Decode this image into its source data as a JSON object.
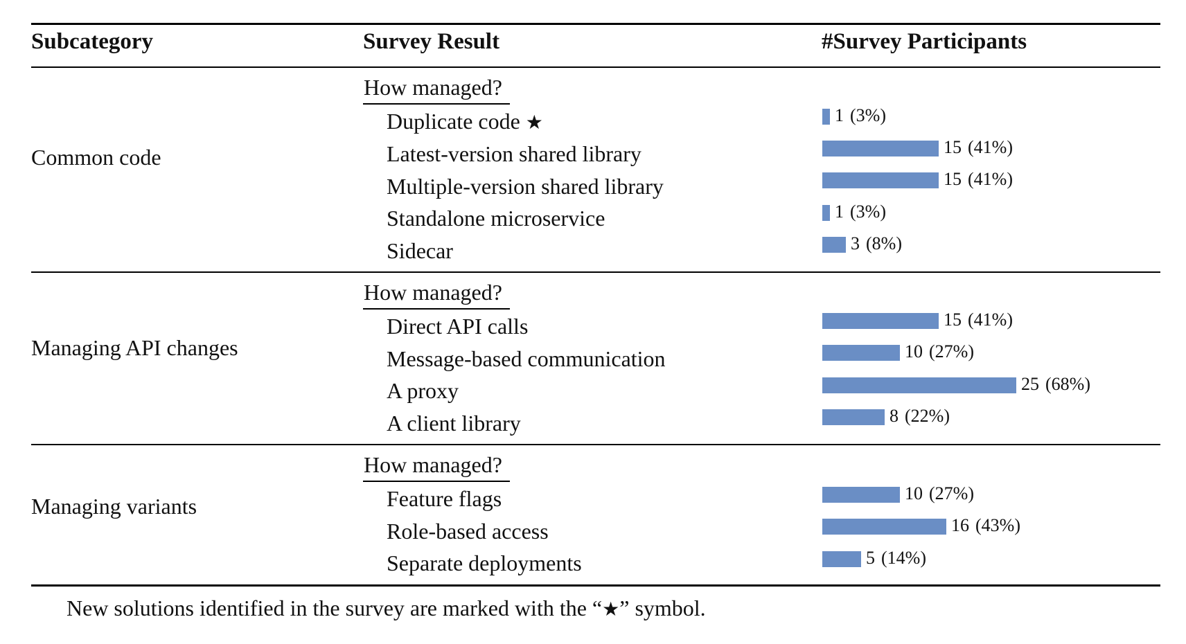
{
  "headers": {
    "subcategory": "Subcategory",
    "survey_result": "Survey Result",
    "participants": "#Survey Participants"
  },
  "star_symbol": "★",
  "bar_color": "#6a8ec5",
  "groups": [
    {
      "subcategory": "Common code",
      "question": "How managed?",
      "items": [
        {
          "label": "Duplicate code",
          "new": true,
          "count": "1",
          "pct": "(3%)",
          "value": 1
        },
        {
          "label": "Latest-version shared library",
          "new": false,
          "count": "15",
          "pct": "(41%)",
          "value": 15
        },
        {
          "label": "Multiple-version shared library",
          "new": false,
          "count": "15",
          "pct": "(41%)",
          "value": 15
        },
        {
          "label": "Standalone microservice",
          "new": false,
          "count": "1",
          "pct": "(3%)",
          "value": 1
        },
        {
          "label": "Sidecar",
          "new": false,
          "count": "3",
          "pct": "(8%)",
          "value": 3
        }
      ]
    },
    {
      "subcategory": "Managing API changes",
      "question": "How managed?",
      "items": [
        {
          "label": "Direct API calls",
          "new": false,
          "count": "15",
          "pct": "(41%)",
          "value": 15
        },
        {
          "label": "Message-based communication",
          "new": false,
          "count": "10",
          "pct": "(27%)",
          "value": 10
        },
        {
          "label": "A proxy",
          "new": false,
          "count": "25",
          "pct": "(68%)",
          "value": 25
        },
        {
          "label": "A client library",
          "new": false,
          "count": "8",
          "pct": "(22%)",
          "value": 8
        }
      ]
    },
    {
      "subcategory": "Managing variants",
      "question": "How managed?",
      "items": [
        {
          "label": "Feature flags",
          "new": false,
          "count": "10",
          "pct": "(27%)",
          "value": 10
        },
        {
          "label": "Role-based access",
          "new": false,
          "count": "16",
          "pct": "(43%)",
          "value": 16
        },
        {
          "label": "Separate deployments",
          "new": false,
          "count": "5",
          "pct": "(14%)",
          "value": 5
        }
      ]
    }
  ],
  "footnote": {
    "before": "New solutions identified in the survey are marked with the “",
    "symbol": "★",
    "after": "” symbol."
  }
}
